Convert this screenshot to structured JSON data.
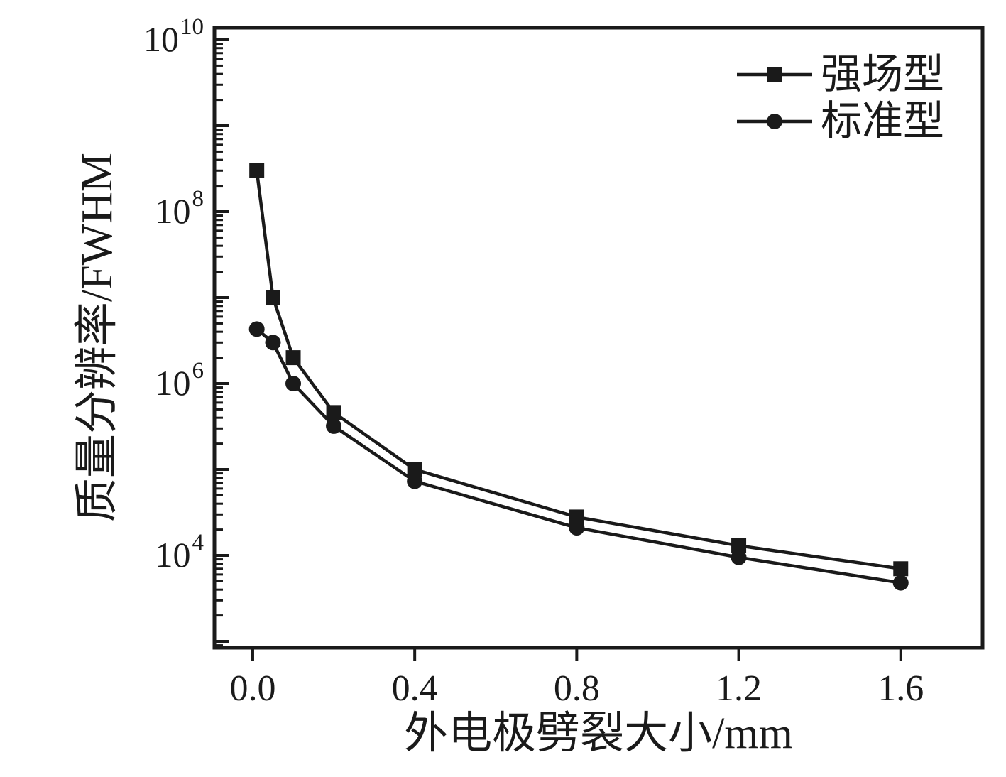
{
  "chart_data": {
    "type": "line",
    "title": "",
    "xlabel": "外电极劈裂大小/mm",
    "ylabel": "质量分辨率/FWHM",
    "x": [
      0.01,
      0.05,
      0.1,
      0.2,
      0.4,
      0.8,
      1.2,
      1.6
    ],
    "series": [
      {
        "name": "强场型",
        "marker": "square",
        "values": [
          300000000,
          10000000,
          2000000,
          460000,
          100000,
          28000,
          13000,
          7000
        ]
      },
      {
        "name": "标准型",
        "marker": "circle",
        "values": [
          4300000,
          3000000,
          1000000,
          320000,
          73000,
          21000,
          9500,
          4800
        ]
      }
    ],
    "x_ticks": {
      "values": [
        0.0,
        0.4,
        0.8,
        1.2,
        1.6
      ],
      "labels": [
        "0.0",
        "0.4",
        "0.8",
        "1.2",
        "1.6"
      ]
    },
    "y_axis": {
      "scale": "log10",
      "labeled_tick_exponents": [
        10,
        8,
        6,
        4
      ],
      "major_tick_exponents": [
        10,
        9,
        8,
        7,
        6,
        5,
        4,
        3
      ],
      "minor_ticks": "multiples 2-9 per decade"
    },
    "xlim": [
      -0.0946,
      1.802
    ],
    "ylim_exponents": [
      2.926,
      10.1405
    ],
    "grid": false,
    "legend_position": "top-right",
    "line_color": "#1a1a1a",
    "background_color": "#ffffff"
  },
  "legend": {
    "items": [
      {
        "label": "强场型",
        "marker": "square"
      },
      {
        "label": "标准型",
        "marker": "circle"
      }
    ]
  },
  "axes": {
    "x_title": "外电极劈裂大小/mm",
    "y_title": "质量分辨率/FWHM"
  },
  "colors": {
    "foreground": "#1a1a1a",
    "background": "#ffffff"
  }
}
